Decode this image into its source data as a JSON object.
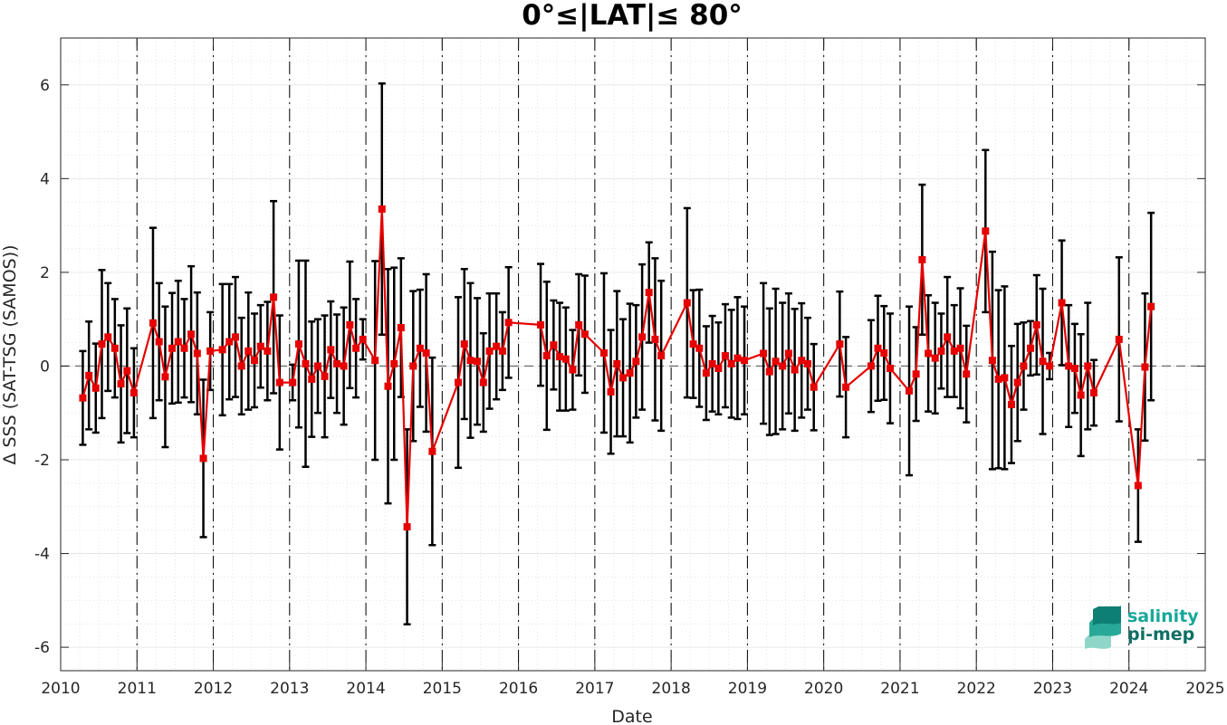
{
  "chart_data": {
    "type": "line",
    "title": "0°≤|LAT|≤ 80°",
    "xlabel": "Date",
    "ylabel": "Δ SSS (SAT-TSG (SAMOS))",
    "xlim": [
      2010,
      2025
    ],
    "ylim": [
      -6.5,
      7
    ],
    "x_ticks": [
      "2010",
      "2011",
      "2012",
      "2013",
      "2014",
      "2015",
      "2016",
      "2017",
      "2018",
      "2019",
      "2020",
      "2021",
      "2022",
      "2023",
      "2024",
      "2025"
    ],
    "y_ticks": [
      "-6",
      "-4",
      "-2",
      "0",
      "2",
      "4",
      "6"
    ],
    "grid": true,
    "year_dividers": true,
    "zero_line": true,
    "series": [
      {
        "color": "#e60000",
        "errorbar_color": "#000000",
        "x": [
          2010.29,
          2010.37,
          2010.46,
          2010.54,
          2010.62,
          2010.71,
          2010.79,
          2010.87,
          2010.96,
          2011.21,
          2011.29,
          2011.37,
          2011.46,
          2011.54,
          2011.62,
          2011.71,
          2011.79,
          2011.87,
          2011.96,
          2012.12,
          2012.21,
          2012.29,
          2012.37,
          2012.46,
          2012.54,
          2012.62,
          2012.71,
          2012.79,
          2012.87,
          2013.04,
          2013.12,
          2013.21,
          2013.29,
          2013.37,
          2013.46,
          2013.54,
          2013.62,
          2013.71,
          2013.79,
          2013.87,
          2013.96,
          2014.12,
          2014.21,
          2014.29,
          2014.37,
          2014.46,
          2014.54,
          2014.62,
          2014.71,
          2014.79,
          2014.87,
          2015.21,
          2015.29,
          2015.37,
          2015.46,
          2015.54,
          2015.62,
          2015.71,
          2015.79,
          2015.87,
          2016.29,
          2016.37,
          2016.46,
          2016.54,
          2016.62,
          2016.71,
          2016.79,
          2016.87,
          2017.12,
          2017.21,
          2017.29,
          2017.37,
          2017.46,
          2017.54,
          2017.62,
          2017.71,
          2017.79,
          2017.87,
          2018.21,
          2018.29,
          2018.37,
          2018.46,
          2018.54,
          2018.62,
          2018.71,
          2018.79,
          2018.87,
          2018.96,
          2019.21,
          2019.29,
          2019.37,
          2019.46,
          2019.54,
          2019.62,
          2019.71,
          2019.79,
          2019.87,
          2020.21,
          2020.29,
          2020.62,
          2020.71,
          2020.79,
          2020.87,
          2021.12,
          2021.21,
          2021.29,
          2021.37,
          2021.46,
          2021.54,
          2021.62,
          2021.71,
          2021.79,
          2021.87,
          2022.12,
          2022.21,
          2022.29,
          2022.37,
          2022.46,
          2022.54,
          2022.62,
          2022.71,
          2022.79,
          2022.87,
          2022.96,
          2023.12,
          2023.21,
          2023.29,
          2023.37,
          2023.46,
          2023.54,
          2023.87,
          2024.12,
          2024.21,
          2024.29
        ],
        "values": [
          -0.68,
          -0.2,
          -0.47,
          0.47,
          0.62,
          0.38,
          -0.38,
          -0.1,
          -0.57,
          0.92,
          0.52,
          -0.23,
          0.38,
          0.52,
          0.38,
          0.68,
          0.27,
          -1.97,
          0.32,
          0.35,
          0.52,
          0.62,
          0.0,
          0.32,
          0.12,
          0.42,
          0.32,
          1.47,
          -0.35,
          -0.35,
          0.47,
          0.05,
          -0.28,
          0.0,
          -0.22,
          0.35,
          0.05,
          0.0,
          0.88,
          0.38,
          0.57,
          0.12,
          3.35,
          -0.43,
          0.05,
          0.82,
          -3.43,
          0.0,
          0.38,
          0.28,
          -1.82,
          -0.35,
          0.47,
          0.12,
          0.1,
          -0.35,
          0.32,
          0.42,
          0.32,
          0.93,
          0.88,
          0.22,
          0.45,
          0.2,
          0.15,
          -0.08,
          0.88,
          0.68,
          0.28,
          -0.55,
          0.05,
          -0.25,
          -0.15,
          0.1,
          0.62,
          1.57,
          0.57,
          0.22,
          1.35,
          0.47,
          0.38,
          -0.15,
          0.05,
          -0.05,
          0.22,
          0.05,
          0.17,
          0.12,
          0.27,
          -0.12,
          0.1,
          0.0,
          0.27,
          -0.08,
          0.12,
          0.05,
          -0.45,
          0.47,
          -0.45,
          0.0,
          0.38,
          0.28,
          -0.05,
          -0.53,
          -0.17,
          2.27,
          0.27,
          0.17,
          0.32,
          0.62,
          0.32,
          0.38,
          -0.17,
          2.88,
          0.12,
          -0.28,
          -0.25,
          -0.82,
          -0.35,
          0.0,
          0.38,
          0.88,
          0.1,
          0.0,
          1.35,
          0.0,
          -0.05,
          -0.62,
          0.0,
          -0.57,
          0.57,
          -2.55,
          -0.02,
          1.27
        ],
        "errors": [
          1.0,
          1.15,
          0.95,
          1.58,
          1.15,
          1.05,
          1.25,
          1.33,
          0.95,
          2.03,
          1.25,
          1.5,
          1.18,
          1.3,
          1.05,
          1.45,
          1.3,
          1.68,
          0.83,
          1.4,
          1.23,
          1.28,
          1.03,
          1.25,
          1.0,
          0.88,
          1.05,
          2.05,
          1.43,
          0.38,
          1.78,
          2.2,
          1.23,
          1.0,
          1.3,
          1.03,
          1.05,
          1.25,
          1.35,
          1.05,
          0.43,
          2.12,
          2.68,
          2.5,
          2.05,
          1.48,
          2.08,
          1.6,
          1.25,
          1.68,
          2.0,
          1.82,
          1.6,
          1.65,
          1.35,
          1.05,
          1.23,
          1.13,
          0.83,
          1.18,
          1.3,
          1.58,
          0.95,
          1.15,
          1.1,
          0.85,
          1.08,
          1.25,
          1.7,
          1.32,
          1.55,
          1.25,
          1.48,
          1.2,
          1.55,
          1.07,
          1.73,
          1.6,
          2.02,
          1.15,
          1.25,
          1.0,
          1.02,
          0.98,
          1.1,
          1.15,
          1.3,
          1.15,
          1.5,
          1.35,
          1.55,
          1.35,
          1.28,
          1.3,
          1.22,
          0.98,
          0.92,
          1.12,
          1.07,
          0.98,
          1.12,
          1.0,
          1.17,
          1.8,
          1.0,
          1.6,
          1.24,
          1.18,
          0.8,
          1.28,
          0.98,
          1.28,
          1.03,
          1.73,
          2.32,
          1.9,
          1.95,
          1.25,
          1.25,
          0.93,
          0.58,
          1.06,
          1.55,
          0.28,
          1.33,
          1.3,
          0.95,
          1.3,
          1.35,
          0.7,
          1.75,
          1.2,
          1.57,
          2.0
        ]
      }
    ],
    "logo": {
      "line1": "salinity",
      "line2": "pi-mep",
      "color": "#17a899"
    }
  }
}
